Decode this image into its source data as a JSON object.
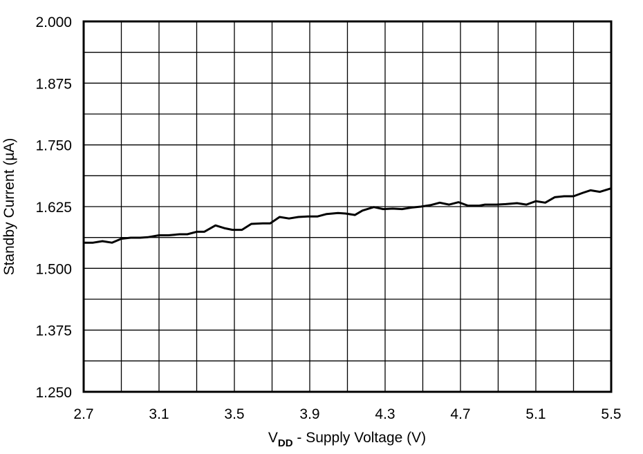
{
  "chart_data": {
    "type": "line",
    "title": "",
    "xlabel": "VDD - Supply Voltage (V)",
    "xlabel_parts": {
      "main": "V",
      "subscript": "DD",
      "rest": " - Supply Voltage (V)"
    },
    "ylabel": "Standby Current (µA)",
    "xlim": [
      2.7,
      5.5
    ],
    "ylim": [
      1.25,
      2.0
    ],
    "x_ticks": [
      "2.7",
      "3.1",
      "3.5",
      "3.9",
      "4.3",
      "4.7",
      "5.1",
      "5.5"
    ],
    "x_tick_values": [
      2.7,
      3.1,
      3.5,
      3.9,
      4.3,
      4.7,
      5.1,
      5.5
    ],
    "x_grid_step": 0.2,
    "y_ticks": [
      "1.250",
      "1.375",
      "1.500",
      "1.625",
      "1.750",
      "1.875",
      "2.000"
    ],
    "y_tick_values": [
      1.25,
      1.375,
      1.5,
      1.625,
      1.75,
      1.875,
      2.0
    ],
    "y_grid_step": 0.0625,
    "grid": true,
    "legend": null,
    "series": [
      {
        "name": "Standby Current",
        "color": "#000000",
        "x": [
          2.7,
          2.75,
          2.8,
          2.85,
          2.9,
          2.95,
          3.0,
          3.04,
          3.1,
          3.15,
          3.21,
          3.25,
          3.3,
          3.34,
          3.4,
          3.45,
          3.49,
          3.54,
          3.59,
          3.65,
          3.69,
          3.74,
          3.79,
          3.84,
          3.89,
          3.94,
          3.99,
          4.05,
          4.09,
          4.14,
          4.18,
          4.24,
          4.29,
          4.34,
          4.39,
          4.44,
          4.49,
          4.54,
          4.59,
          4.64,
          4.69,
          4.74,
          4.8,
          4.83,
          4.89,
          4.94,
          5.0,
          5.05,
          5.1,
          5.15,
          5.2,
          5.25,
          5.3,
          5.35,
          5.39,
          5.44,
          5.5
        ],
        "y": [
          1.552,
          1.552,
          1.555,
          1.552,
          1.56,
          1.562,
          1.562,
          1.563,
          1.567,
          1.567,
          1.569,
          1.569,
          1.574,
          1.574,
          1.587,
          1.581,
          1.578,
          1.578,
          1.59,
          1.591,
          1.591,
          1.604,
          1.601,
          1.604,
          1.605,
          1.605,
          1.61,
          1.612,
          1.611,
          1.608,
          1.617,
          1.624,
          1.62,
          1.621,
          1.62,
          1.623,
          1.625,
          1.628,
          1.633,
          1.629,
          1.634,
          1.627,
          1.627,
          1.629,
          1.629,
          1.63,
          1.632,
          1.629,
          1.636,
          1.633,
          1.644,
          1.646,
          1.646,
          1.653,
          1.658,
          1.655,
          1.662
        ]
      }
    ]
  }
}
